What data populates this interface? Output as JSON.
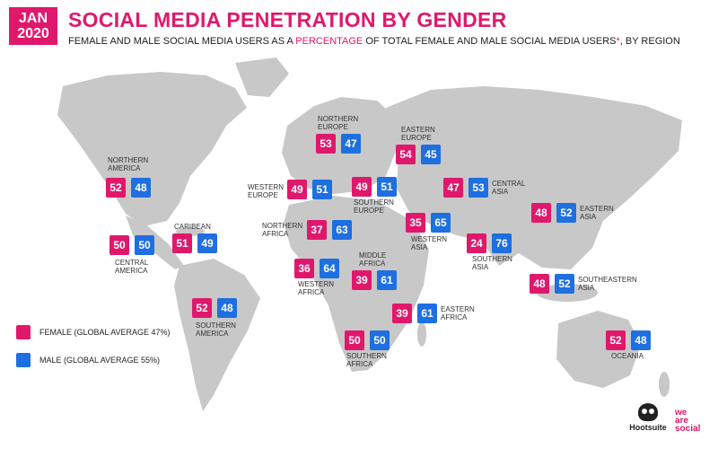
{
  "header": {
    "date_month": "JAN",
    "date_year": "2020",
    "title": "SOCIAL MEDIA PENETRATION BY GENDER",
    "subtitle_a": "FEMALE AND MALE SOCIAL MEDIA USERS AS A ",
    "subtitle_highlight": "PERCENTAGE",
    "subtitle_b": " OF TOTAL FEMALE AND MALE SOCIAL MEDIA USERS",
    "subtitle_star": "*",
    "subtitle_c": ", BY REGION"
  },
  "colors": {
    "female": "#e0186c",
    "male": "#1e6fe0",
    "land": "#c8c8c8"
  },
  "regions": [
    {
      "id": "northern-america",
      "label_lines": [
        "NORTHERN",
        "AMERICA"
      ],
      "female": "52",
      "male": "48"
    },
    {
      "id": "central-america",
      "label_lines": [
        "CENTRAL",
        "AMERICA"
      ],
      "female": "50",
      "male": "50"
    },
    {
      "id": "caribean",
      "label_lines": [
        "CARIBEAN"
      ],
      "female": "51",
      "male": "49"
    },
    {
      "id": "southern-america",
      "label_lines": [
        "SOUTHERN",
        "AMERICA"
      ],
      "female": "52",
      "male": "48"
    },
    {
      "id": "northern-europe",
      "label_lines": [
        "NORTHERN",
        "EUROPE"
      ],
      "female": "53",
      "male": "47"
    },
    {
      "id": "western-europe",
      "label_lines": [
        "WESTERN",
        "EUROPE"
      ],
      "female": "49",
      "male": "51"
    },
    {
      "id": "southern-europe",
      "label_lines": [
        "SOUTHERN",
        "EUROPE"
      ],
      "female": "49",
      "male": "51"
    },
    {
      "id": "eastern-europe",
      "label_lines": [
        "EASTERN",
        "EUROPE"
      ],
      "female": "54",
      "male": "45"
    },
    {
      "id": "northern-africa",
      "label_lines": [
        "NORTHERN",
        "AFRICA"
      ],
      "female": "37",
      "male": "63"
    },
    {
      "id": "western-africa",
      "label_lines": [
        "WESTERN",
        "AFRICA"
      ],
      "female": "36",
      "male": "64"
    },
    {
      "id": "middle-africa",
      "label_lines": [
        "MIDDLE",
        "AFRICA"
      ],
      "female": "39",
      "male": "61"
    },
    {
      "id": "eastern-africa",
      "label_lines": [
        "EASTERN",
        "AFRICA"
      ],
      "female": "39",
      "male": "61"
    },
    {
      "id": "southern-africa",
      "label_lines": [
        "SOUTHERN",
        "AFRICA"
      ],
      "female": "50",
      "male": "50"
    },
    {
      "id": "western-asia",
      "label_lines": [
        "WESTERN",
        "ASIA"
      ],
      "female": "35",
      "male": "65"
    },
    {
      "id": "central-asia",
      "label_lines": [
        "CENTRAL",
        "ASIA"
      ],
      "female": "47",
      "male": "53"
    },
    {
      "id": "southern-asia",
      "label_lines": [
        "SOUTHERN",
        "ASIA"
      ],
      "female": "24",
      "male": "76"
    },
    {
      "id": "eastern-asia",
      "label_lines": [
        "EASTERN",
        "ASIA"
      ],
      "female": "48",
      "male": "52"
    },
    {
      "id": "southeastern-asia",
      "label_lines": [
        "SOUTHEASTERN",
        "ASIA"
      ],
      "female": "48",
      "male": "52"
    },
    {
      "id": "oceania",
      "label_lines": [
        "OCEANIA"
      ],
      "female": "52",
      "male": "48"
    }
  ],
  "legend": {
    "female": "FEMALE (GLOBAL AVERAGE 47%)",
    "male": "MALE (GLOBAL AVERAGE 55%)"
  },
  "brands": {
    "hootsuite": "Hootsuite",
    "wearesocial": [
      "we",
      "are",
      "social"
    ]
  }
}
